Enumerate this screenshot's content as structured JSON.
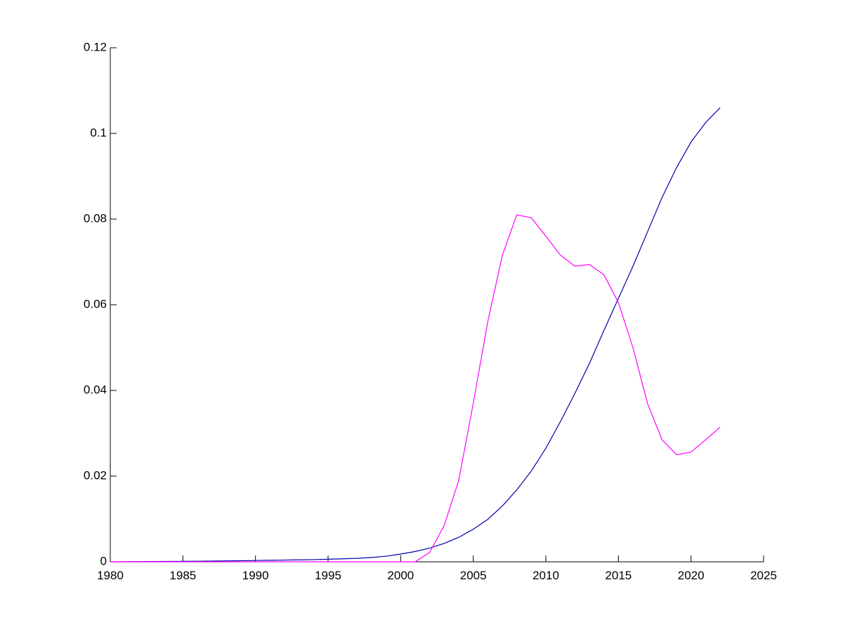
{
  "chart_data": {
    "type": "line",
    "x": [
      1980,
      1981,
      1982,
      1983,
      1984,
      1985,
      1986,
      1987,
      1988,
      1989,
      1990,
      1991,
      1992,
      1993,
      1994,
      1995,
      1996,
      1997,
      1998,
      1999,
      2000,
      2001,
      2002,
      2003,
      2004,
      2005,
      2006,
      2007,
      2008,
      2009,
      2010,
      2011,
      2012,
      2013,
      2014,
      2015,
      2016,
      2017,
      2018,
      2019,
      2020,
      2021,
      2022
    ],
    "series": [
      {
        "color": "#0000aa",
        "values": [
          0,
          2e-05,
          4e-05,
          6e-05,
          8e-05,
          0.0001,
          0.00013,
          0.00016,
          0.0002,
          0.00025,
          0.0003,
          0.00035,
          0.0004,
          0.00045,
          0.0005,
          0.0006,
          0.0007,
          0.0008,
          0.001,
          0.0013,
          0.0018,
          0.0024,
          0.0032,
          0.0043,
          0.0057,
          0.0076,
          0.0099,
          0.013,
          0.0168,
          0.0212,
          0.0265,
          0.0327,
          0.0393,
          0.0463,
          0.054,
          0.0615,
          0.069,
          0.077,
          0.085,
          0.092,
          0.098,
          0.1025,
          0.106
        ]
      },
      {
        "color": "#ff00ff",
        "values": [
          0,
          0,
          0,
          0,
          0,
          0,
          0,
          0,
          0,
          0,
          0,
          0,
          0,
          0,
          0,
          0,
          0,
          0,
          0,
          0,
          0,
          0,
          0.0022,
          0.0085,
          0.019,
          0.037,
          0.056,
          0.0715,
          0.081,
          0.0803,
          0.076,
          0.0716,
          0.069,
          0.0694,
          0.067,
          0.0605,
          0.05,
          0.037,
          0.0285,
          0.025,
          0.0256,
          0.0285,
          0.0314
        ]
      }
    ],
    "xlim": [
      1980,
      2025
    ],
    "xticks": [
      1980,
      1985,
      1990,
      1995,
      2000,
      2005,
      2010,
      2015,
      2020,
      2025
    ],
    "ylim": [
      0,
      0.12
    ],
    "yticks": [
      0,
      0.02,
      0.04,
      0.06,
      0.08,
      0.1,
      0.12
    ]
  }
}
